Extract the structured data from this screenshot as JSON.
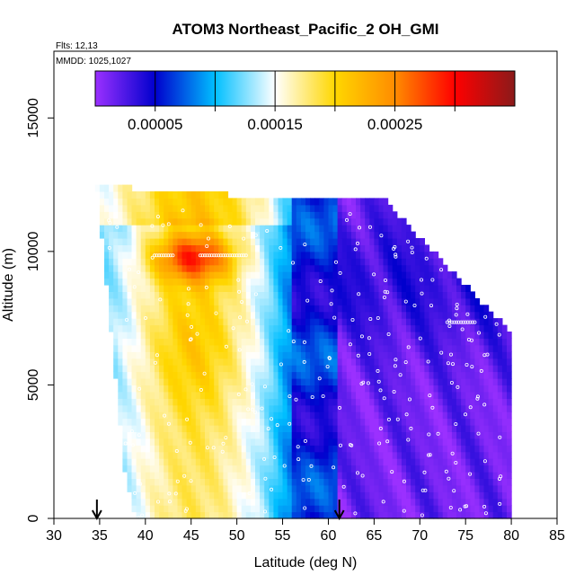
{
  "chart_data": {
    "type": "heatmap",
    "title": "ATOM3 Northeast_Pacific_2 OH_GMI",
    "flights_label": "Flts: 12,13",
    "date_label": "MMDD: 1025,1027",
    "xlabel": "Latitude (deg N)",
    "ylabel": "Altitude (m)",
    "xlim": [
      30,
      85
    ],
    "ylim": [
      0,
      17500
    ],
    "x_ticks": [
      "30",
      "35",
      "40",
      "45",
      "50",
      "55",
      "60",
      "65",
      "70",
      "75",
      "80",
      "85"
    ],
    "y_ticks": [
      "0",
      "5000",
      "10000",
      "15000"
    ],
    "colorbar": {
      "min": 0,
      "max": 0.00035,
      "tick_labels": [
        "0.00005",
        "0.00015",
        "0.00025"
      ],
      "tick_values": [
        5e-05,
        0.00015,
        0.00025
      ],
      "colors": [
        "#9b30ff",
        "#0000cd",
        "#00bfff",
        "#ffffff",
        "#ffd700",
        "#ff8c00",
        "#ff0000",
        "#8b1a1a"
      ]
    },
    "arrows_at_latitude": [
      34.7,
      61.2
    ],
    "grid": false,
    "colors": {
      "low": "#9b30ff",
      "mid_low": "#0000cd",
      "mid": "#00bfff",
      "mid_high": "#fffacd",
      "high": "#ff0000",
      "max": "#8b1a1a",
      "flight_points": "#ffffff"
    }
  }
}
